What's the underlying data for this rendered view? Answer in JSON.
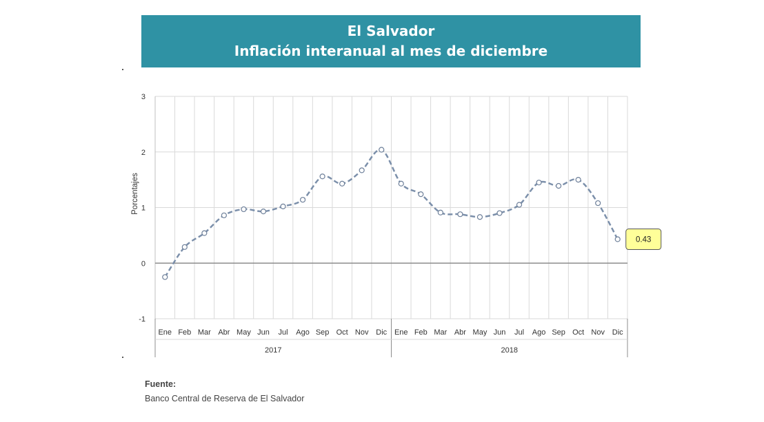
{
  "header": {
    "title": "El Salvador",
    "subtitle": "Inflación interanual al mes de diciembre"
  },
  "source": {
    "label": "Fuente:",
    "text": "Banco Central de Reserva de El Salvador"
  },
  "colors": {
    "banner": "#2f92a4",
    "line": "#7b8faa",
    "callout_fill": "#ffff99"
  },
  "chart_data": {
    "type": "line",
    "ylabel": "Porcentajes",
    "ylim": [
      -1,
      3
    ],
    "yticks": [
      -1,
      0,
      1,
      2,
      3
    ],
    "grid": true,
    "line_style": "dashed with circle markers",
    "categories": [
      "Ene",
      "Feb",
      "Mar",
      "Abr",
      "May",
      "Jun",
      "Jul",
      "Ago",
      "Sep",
      "Oct",
      "Nov",
      "Dic",
      "Ene",
      "Feb",
      "Mar",
      "Abr",
      "May",
      "Jun",
      "Jul",
      "Ago",
      "Sep",
      "Oct",
      "Nov",
      "Dic"
    ],
    "groups": [
      {
        "label": "2017",
        "count": 12
      },
      {
        "label": "2018",
        "count": 12
      }
    ],
    "series": [
      {
        "values": [
          -0.25,
          0.29,
          0.54,
          0.86,
          0.97,
          0.93,
          1.02,
          1.14,
          1.56,
          1.43,
          1.67,
          2.04,
          1.43,
          1.24,
          0.91,
          0.88,
          0.83,
          0.9,
          1.05,
          1.45,
          1.39,
          1.5,
          1.08,
          0.43
        ]
      }
    ],
    "annotations": [
      {
        "index": 23,
        "text": "0.43"
      }
    ]
  }
}
